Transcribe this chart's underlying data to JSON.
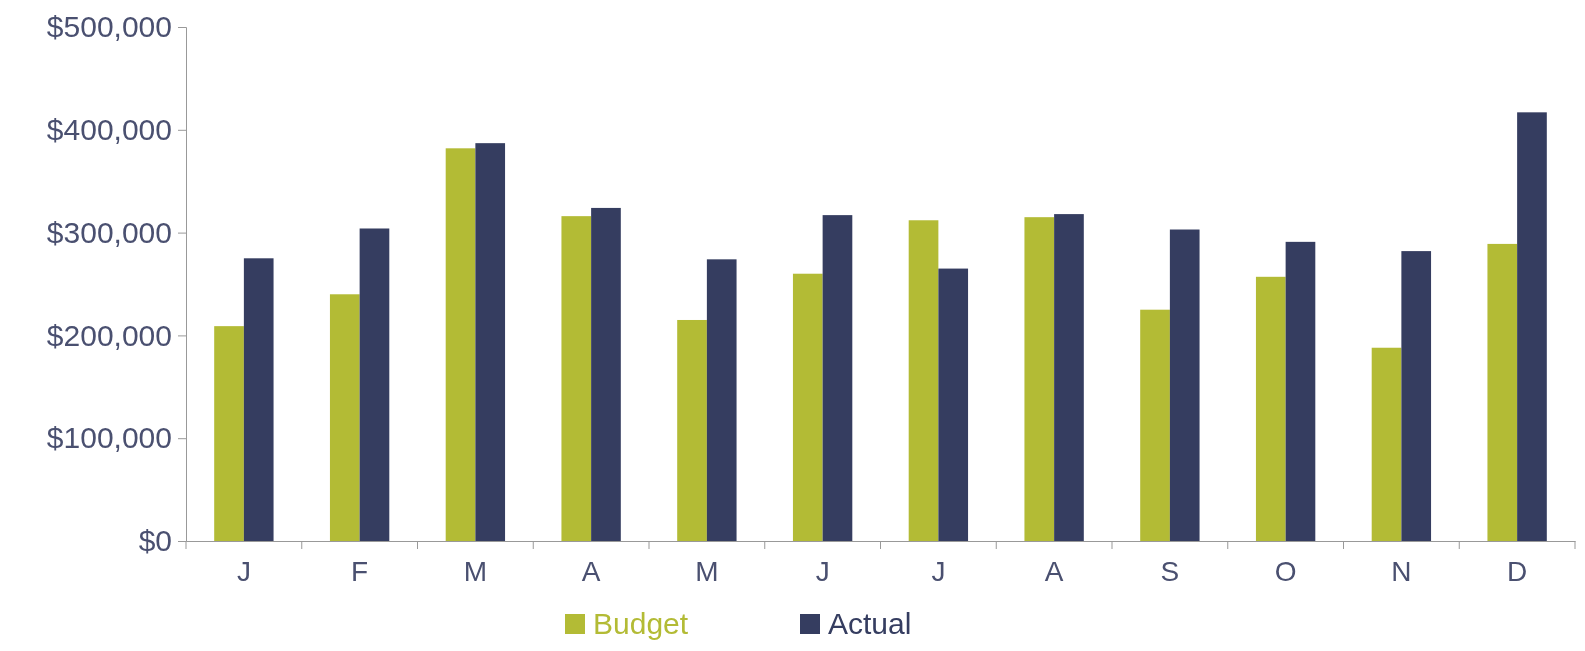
{
  "chart_data": {
    "type": "bar",
    "categories": [
      "J",
      "F",
      "M",
      "A",
      "M",
      "J",
      "J",
      "A",
      "S",
      "O",
      "N",
      "D"
    ],
    "series": [
      {
        "name": "Budget",
        "color": "#b3bb35",
        "values": [
          209000,
          240000,
          382000,
          316000,
          215000,
          260000,
          312000,
          315000,
          225000,
          257000,
          188000,
          289000
        ]
      },
      {
        "name": "Actual",
        "color": "#353d60",
        "values": [
          275000,
          304000,
          387000,
          324000,
          274000,
          317000,
          265000,
          318000,
          303000,
          291000,
          282000,
          417000
        ]
      }
    ],
    "ylim": [
      0,
      500000
    ],
    "yticks": [
      {
        "value": 0,
        "label": "$0"
      },
      {
        "value": 100000,
        "label": "$100,000"
      },
      {
        "value": 200000,
        "label": "$200,000"
      },
      {
        "value": 300000,
        "label": "$300,000"
      },
      {
        "value": 400000,
        "label": "$400,000"
      },
      {
        "value": 500000,
        "label": "$500,000"
      }
    ],
    "grid": false,
    "legend": "bottom"
  }
}
